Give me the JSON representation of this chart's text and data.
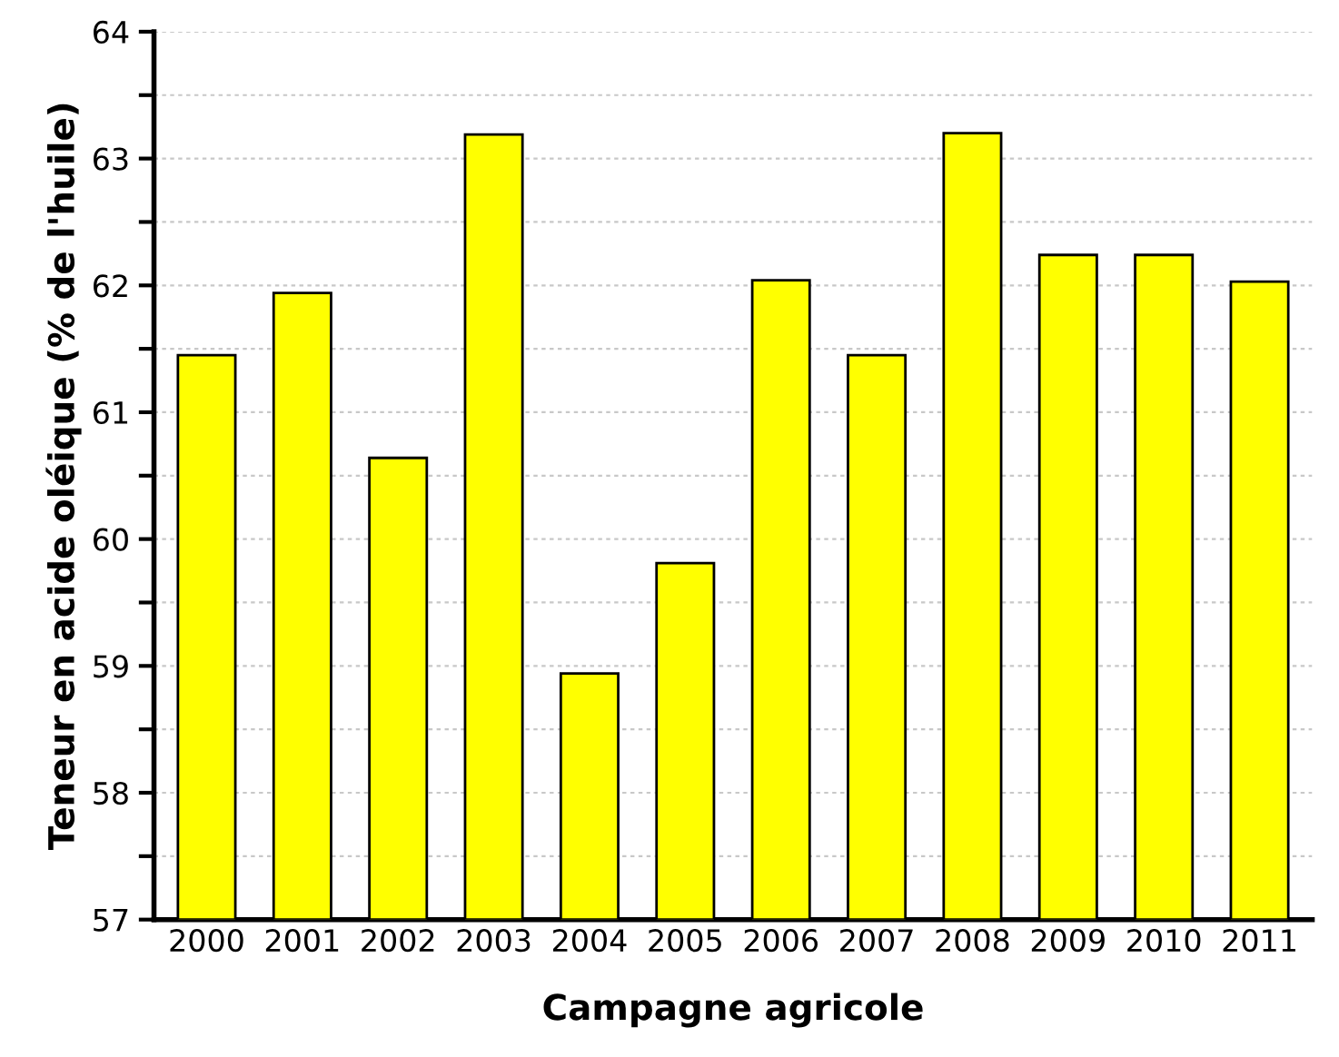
{
  "chart_data": {
    "type": "bar",
    "xlabel": "Campagne agricole",
    "ylabel": "Teneur en acide oléique (% de l'huile)",
    "categories": [
      "2000",
      "2001",
      "2002",
      "2003",
      "2004",
      "2005",
      "2006",
      "2007",
      "2008",
      "2009",
      "2010",
      "2011"
    ],
    "values": [
      61.45,
      61.94,
      60.64,
      63.19,
      58.94,
      59.81,
      62.04,
      61.45,
      63.2,
      62.24,
      62.24,
      62.03
    ],
    "color": "#ffff00",
    "ylim": [
      57,
      64
    ],
    "yticks": [
      57,
      {
        "value": 57.5,
        "label": null
      },
      58,
      {
        "value": 58.5,
        "label": null
      },
      59,
      {
        "value": 59.5,
        "label": null
      },
      60,
      {
        "value": 60.5,
        "label": null
      },
      61,
      {
        "value": 61.5,
        "label": null
      },
      62,
      {
        "value": 62.5,
        "label": null
      },
      63,
      {
        "value": 63.5,
        "label": null
      },
      64
    ],
    "grid": "y"
  }
}
